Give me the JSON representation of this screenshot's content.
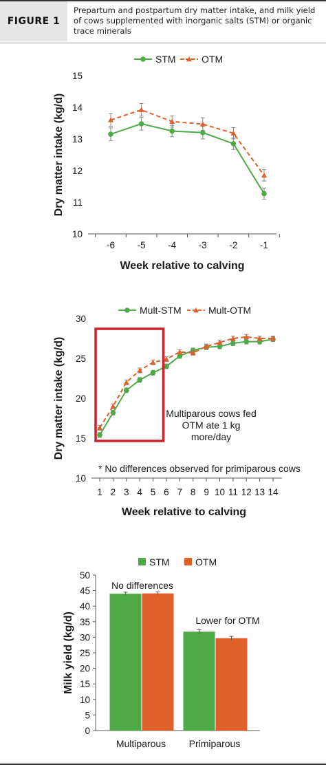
{
  "figure": {
    "label": "FIGURE 1",
    "caption": "Prepartum and postpartum dry matter intake, and milk yield of cows supplemented with inorganic salts (STM) or organic trace minerals"
  },
  "colors": {
    "stm": "#4daa47",
    "otm": "#e0602a",
    "box": "#cc2229",
    "axis": "#555555",
    "error": "#888888"
  },
  "chart_data": [
    {
      "type": "line",
      "xlabel": "Week relative to calving",
      "ylabel": "Dry matter intake (kg/d)",
      "categories": [
        "-6",
        "-5",
        "-4",
        "-3",
        "-2",
        "-1"
      ],
      "ylim": [
        10,
        15
      ],
      "yticks": [
        10,
        11,
        12,
        13,
        14,
        15
      ],
      "legend": "top",
      "series": [
        {
          "name": "STM",
          "style": "solid-circle",
          "values": [
            13.15,
            13.48,
            13.25,
            13.2,
            12.85,
            11.27
          ],
          "errors": [
            0.2,
            0.2,
            0.18,
            0.2,
            0.18,
            0.18
          ]
        },
        {
          "name": "OTM",
          "style": "dashed-triangle",
          "values": [
            13.6,
            13.92,
            13.55,
            13.47,
            13.18,
            11.85
          ],
          "errors": [
            0.2,
            0.2,
            0.18,
            0.2,
            0.18,
            0.18
          ]
        }
      ]
    },
    {
      "type": "line",
      "xlabel": "Week relative to calving",
      "ylabel": "Dry matter intake (kg/d)",
      "categories": [
        "1",
        "2",
        "3",
        "4",
        "5",
        "6",
        "7",
        "8",
        "9",
        "10",
        "11",
        "12",
        "13",
        "14"
      ],
      "ylim": [
        10,
        30
      ],
      "yticks": [
        10,
        15,
        20,
        25,
        30
      ],
      "legend": "top",
      "series": [
        {
          "name": "Mult-STM",
          "style": "solid-circle",
          "values": [
            15.4,
            18.2,
            21.0,
            22.3,
            23.2,
            24.0,
            25.3,
            26.0,
            26.4,
            26.5,
            26.9,
            27.1,
            27.1,
            27.4
          ],
          "errors": [
            0.3,
            0.3,
            0.3,
            0.3,
            0.3,
            0.3,
            0.3,
            0.3,
            0.3,
            0.3,
            0.3,
            0.3,
            0.3,
            0.3
          ]
        },
        {
          "name": "Mult-OTM",
          "style": "dashed-triangle",
          "values": [
            16.3,
            19.0,
            22.0,
            23.5,
            24.5,
            24.9,
            25.8,
            25.7,
            26.5,
            27.0,
            27.5,
            27.7,
            27.5,
            27.5
          ],
          "errors": [
            0.3,
            0.3,
            0.3,
            0.3,
            0.3,
            0.3,
            0.3,
            0.3,
            0.3,
            0.3,
            0.3,
            0.3,
            0.3,
            0.3
          ]
        }
      ],
      "highlight_weeks": [
        1,
        5
      ],
      "annotations": [
        "Multiparous cows fed",
        "OTM ate 1 kg",
        "more/day"
      ],
      "footnote": "* No differences observed for primiparous cows"
    },
    {
      "type": "bar",
      "ylabel": "Milk yield (kg/d)",
      "categories": [
        "Multiparous",
        "Primiparous"
      ],
      "ylim": [
        0,
        50
      ],
      "yticks": [
        0,
        5,
        10,
        15,
        20,
        25,
        30,
        35,
        40,
        45,
        50
      ],
      "legend": "top",
      "series": [
        {
          "name": "STM",
          "values": [
            44.0,
            31.8
          ],
          "errors": [
            0.5,
            0.6
          ]
        },
        {
          "name": "OTM",
          "values": [
            44.1,
            29.7
          ],
          "errors": [
            0.5,
            0.6
          ]
        }
      ],
      "annotations": [
        "No differences",
        "Lower for OTM"
      ]
    }
  ]
}
